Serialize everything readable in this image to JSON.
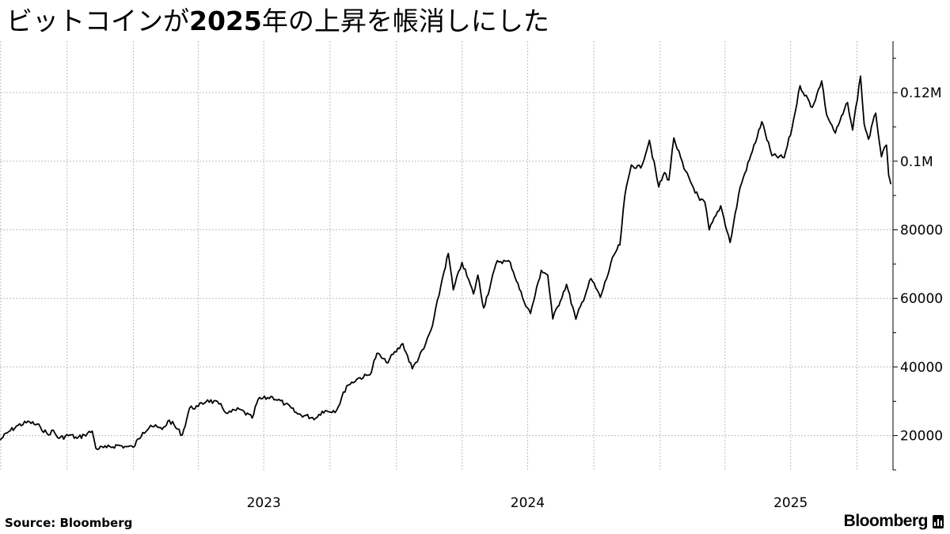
{
  "title": {
    "part1": "ビットコインが",
    "part2": "2025",
    "part3": "年の上昇を帳消しにした"
  },
  "source": "Source:  Bloomberg",
  "brand": "Bloomberg",
  "brand_icon": "bloomberg-terminal-icon",
  "chart_data": {
    "type": "line",
    "title": "ビットコインが2025年の上昇を帳消しにした",
    "xlabel": "",
    "ylabel": "",
    "grid": true,
    "legend": "none",
    "xlim": [
      "2022-06-30",
      "2025-11-20"
    ],
    "ylim": [
      10000,
      135000
    ],
    "x_ticks": [
      "2023",
      "2024",
      "2025"
    ],
    "y_ticks": [
      {
        "value": 20000,
        "label": "20000"
      },
      {
        "value": 40000,
        "label": "40000"
      },
      {
        "value": 60000,
        "label": "60000"
      },
      {
        "value": 80000,
        "label": "80000"
      },
      {
        "value": 100000,
        "label": "0.1M"
      },
      {
        "value": 120000,
        "label": "0.12M"
      }
    ],
    "series": [
      {
        "color": "#000000",
        "points": [
          [
            "2022-06-30",
            18700
          ],
          [
            "2022-07-10",
            20800
          ],
          [
            "2022-07-25",
            23000
          ],
          [
            "2022-08-10",
            24000
          ],
          [
            "2022-08-25",
            22500
          ],
          [
            "2022-09-05",
            20200
          ],
          [
            "2022-09-10",
            21600
          ],
          [
            "2022-09-20",
            19200
          ],
          [
            "2022-10-05",
            20200
          ],
          [
            "2022-10-15",
            19200
          ],
          [
            "2022-10-25",
            20200
          ],
          [
            "2022-11-05",
            21300
          ],
          [
            "2022-11-10",
            16300
          ],
          [
            "2022-11-25",
            16500
          ],
          [
            "2022-12-10",
            17200
          ],
          [
            "2022-12-20",
            16800
          ],
          [
            "2023-01-01",
            16600
          ],
          [
            "2023-01-14",
            20900
          ],
          [
            "2023-01-25",
            23000
          ],
          [
            "2023-02-10",
            21800
          ],
          [
            "2023-02-20",
            24500
          ],
          [
            "2023-03-10",
            20200
          ],
          [
            "2023-03-20",
            28000
          ],
          [
            "2023-04-01",
            28500
          ],
          [
            "2023-04-14",
            30400
          ],
          [
            "2023-04-30",
            29200
          ],
          [
            "2023-05-12",
            26500
          ],
          [
            "2023-05-28",
            27700
          ],
          [
            "2023-06-15",
            25100
          ],
          [
            "2023-06-23",
            30500
          ],
          [
            "2023-07-13",
            31300
          ],
          [
            "2023-07-31",
            29200
          ],
          [
            "2023-08-17",
            26300
          ],
          [
            "2023-09-11",
            25100
          ],
          [
            "2023-09-20",
            27100
          ],
          [
            "2023-10-10",
            27400
          ],
          [
            "2023-10-24",
            34500
          ],
          [
            "2023-11-09",
            36700
          ],
          [
            "2023-11-25",
            37700
          ],
          [
            "2023-12-05",
            44000
          ],
          [
            "2023-12-18",
            41300
          ],
          [
            "2024-01-10",
            46800
          ],
          [
            "2024-01-23",
            39500
          ],
          [
            "2024-02-08",
            45300
          ],
          [
            "2024-02-20",
            52000
          ],
          [
            "2024-03-05",
            66000
          ],
          [
            "2024-03-13",
            73100
          ],
          [
            "2024-03-20",
            62500
          ],
          [
            "2024-04-01",
            70500
          ],
          [
            "2024-04-17",
            61300
          ],
          [
            "2024-04-23",
            66800
          ],
          [
            "2024-05-01",
            57200
          ],
          [
            "2024-05-20",
            71000
          ],
          [
            "2024-06-07",
            70500
          ],
          [
            "2024-06-24",
            60200
          ],
          [
            "2024-07-05",
            55600
          ],
          [
            "2024-07-20",
            68200
          ],
          [
            "2024-07-29",
            66800
          ],
          [
            "2024-08-05",
            54000
          ],
          [
            "2024-08-24",
            64100
          ],
          [
            "2024-09-06",
            53900
          ],
          [
            "2024-09-27",
            65800
          ],
          [
            "2024-10-10",
            60300
          ],
          [
            "2024-10-29",
            72700
          ],
          [
            "2024-11-06",
            75600
          ],
          [
            "2024-11-13",
            90000
          ],
          [
            "2024-11-22",
            98900
          ],
          [
            "2024-12-05",
            98000
          ],
          [
            "2024-12-17",
            106100
          ],
          [
            "2024-12-30",
            92500
          ],
          [
            "2025-01-07",
            96700
          ],
          [
            "2025-01-13",
            94500
          ],
          [
            "2025-01-20",
            106800
          ],
          [
            "2025-02-03",
            97800
          ],
          [
            "2025-02-25",
            88600
          ],
          [
            "2025-03-04",
            88000
          ],
          [
            "2025-03-10",
            80000
          ],
          [
            "2025-03-26",
            87000
          ],
          [
            "2025-04-08",
            76300
          ],
          [
            "2025-04-22",
            92500
          ],
          [
            "2025-05-09",
            103000
          ],
          [
            "2025-05-22",
            111500
          ],
          [
            "2025-06-05",
            101600
          ],
          [
            "2025-06-22",
            101000
          ],
          [
            "2025-07-03",
            109700
          ],
          [
            "2025-07-14",
            122000
          ],
          [
            "2025-07-31",
            115700
          ],
          [
            "2025-08-13",
            123400
          ],
          [
            "2025-08-20",
            113500
          ],
          [
            "2025-09-01",
            108200
          ],
          [
            "2025-09-18",
            117100
          ],
          [
            "2025-09-25",
            109100
          ],
          [
            "2025-10-06",
            124800
          ],
          [
            "2025-10-11",
            110800
          ],
          [
            "2025-10-17",
            106400
          ],
          [
            "2025-10-27",
            114000
          ],
          [
            "2025-11-04",
            101300
          ],
          [
            "2025-11-11",
            104700
          ],
          [
            "2025-11-14",
            96000
          ],
          [
            "2025-11-17",
            93300
          ]
        ]
      }
    ]
  }
}
